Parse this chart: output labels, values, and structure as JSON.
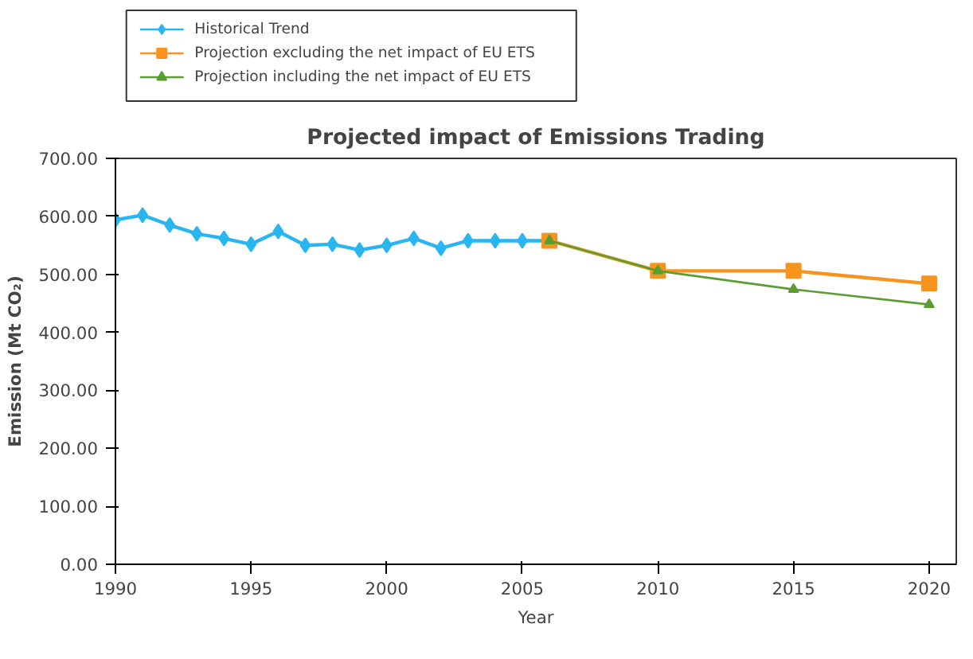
{
  "chart_data": {
    "type": "line",
    "title": "Projected impact of Emissions Trading",
    "xlabel": "Year",
    "ylabel": "Emission (Mt CO₂)",
    "xlim": [
      1990,
      2021
    ],
    "xticks": [
      1990,
      1995,
      2000,
      2005,
      2010,
      2015,
      2020
    ],
    "ylim": [
      0,
      700
    ],
    "yticks": [
      {
        "value": 0,
        "label": "0.00"
      },
      {
        "value": 100,
        "label": "100.00"
      },
      {
        "value": 200,
        "label": "200.00"
      },
      {
        "value": 300,
        "label": "300.00"
      },
      {
        "value": 400,
        "label": "400.00"
      },
      {
        "value": 500,
        "label": "500.00"
      },
      {
        "value": 600,
        "label": "600.00"
      },
      {
        "value": 700,
        "label": "700.00"
      }
    ],
    "grid": false,
    "legend": "top left",
    "series": [
      {
        "name": "Historical Trend",
        "color": "#29b6f0",
        "marker": "diamond",
        "x": [
          1990,
          1991,
          1992,
          1993,
          1994,
          1995,
          1996,
          1997,
          1998,
          1999,
          2000,
          2001,
          2002,
          2003,
          2004,
          2005,
          2006
        ],
        "values": [
          594,
          602,
          585,
          570,
          562,
          552,
          574,
          550,
          552,
          542,
          550,
          562,
          545,
          558,
          558,
          558,
          558
        ]
      },
      {
        "name": "Projection excluding the net impact of EU ETS",
        "color": "#f7941d",
        "marker": "square",
        "x": [
          2006,
          2010,
          2015,
          2020
        ],
        "values": [
          558,
          506,
          506,
          484
        ]
      },
      {
        "name": "Projection including the net impact of EU ETS",
        "color": "#5a9e32",
        "marker": "triangle",
        "x": [
          2006,
          2010,
          2015,
          2020
        ],
        "values": [
          558,
          506,
          474,
          448
        ]
      }
    ]
  }
}
